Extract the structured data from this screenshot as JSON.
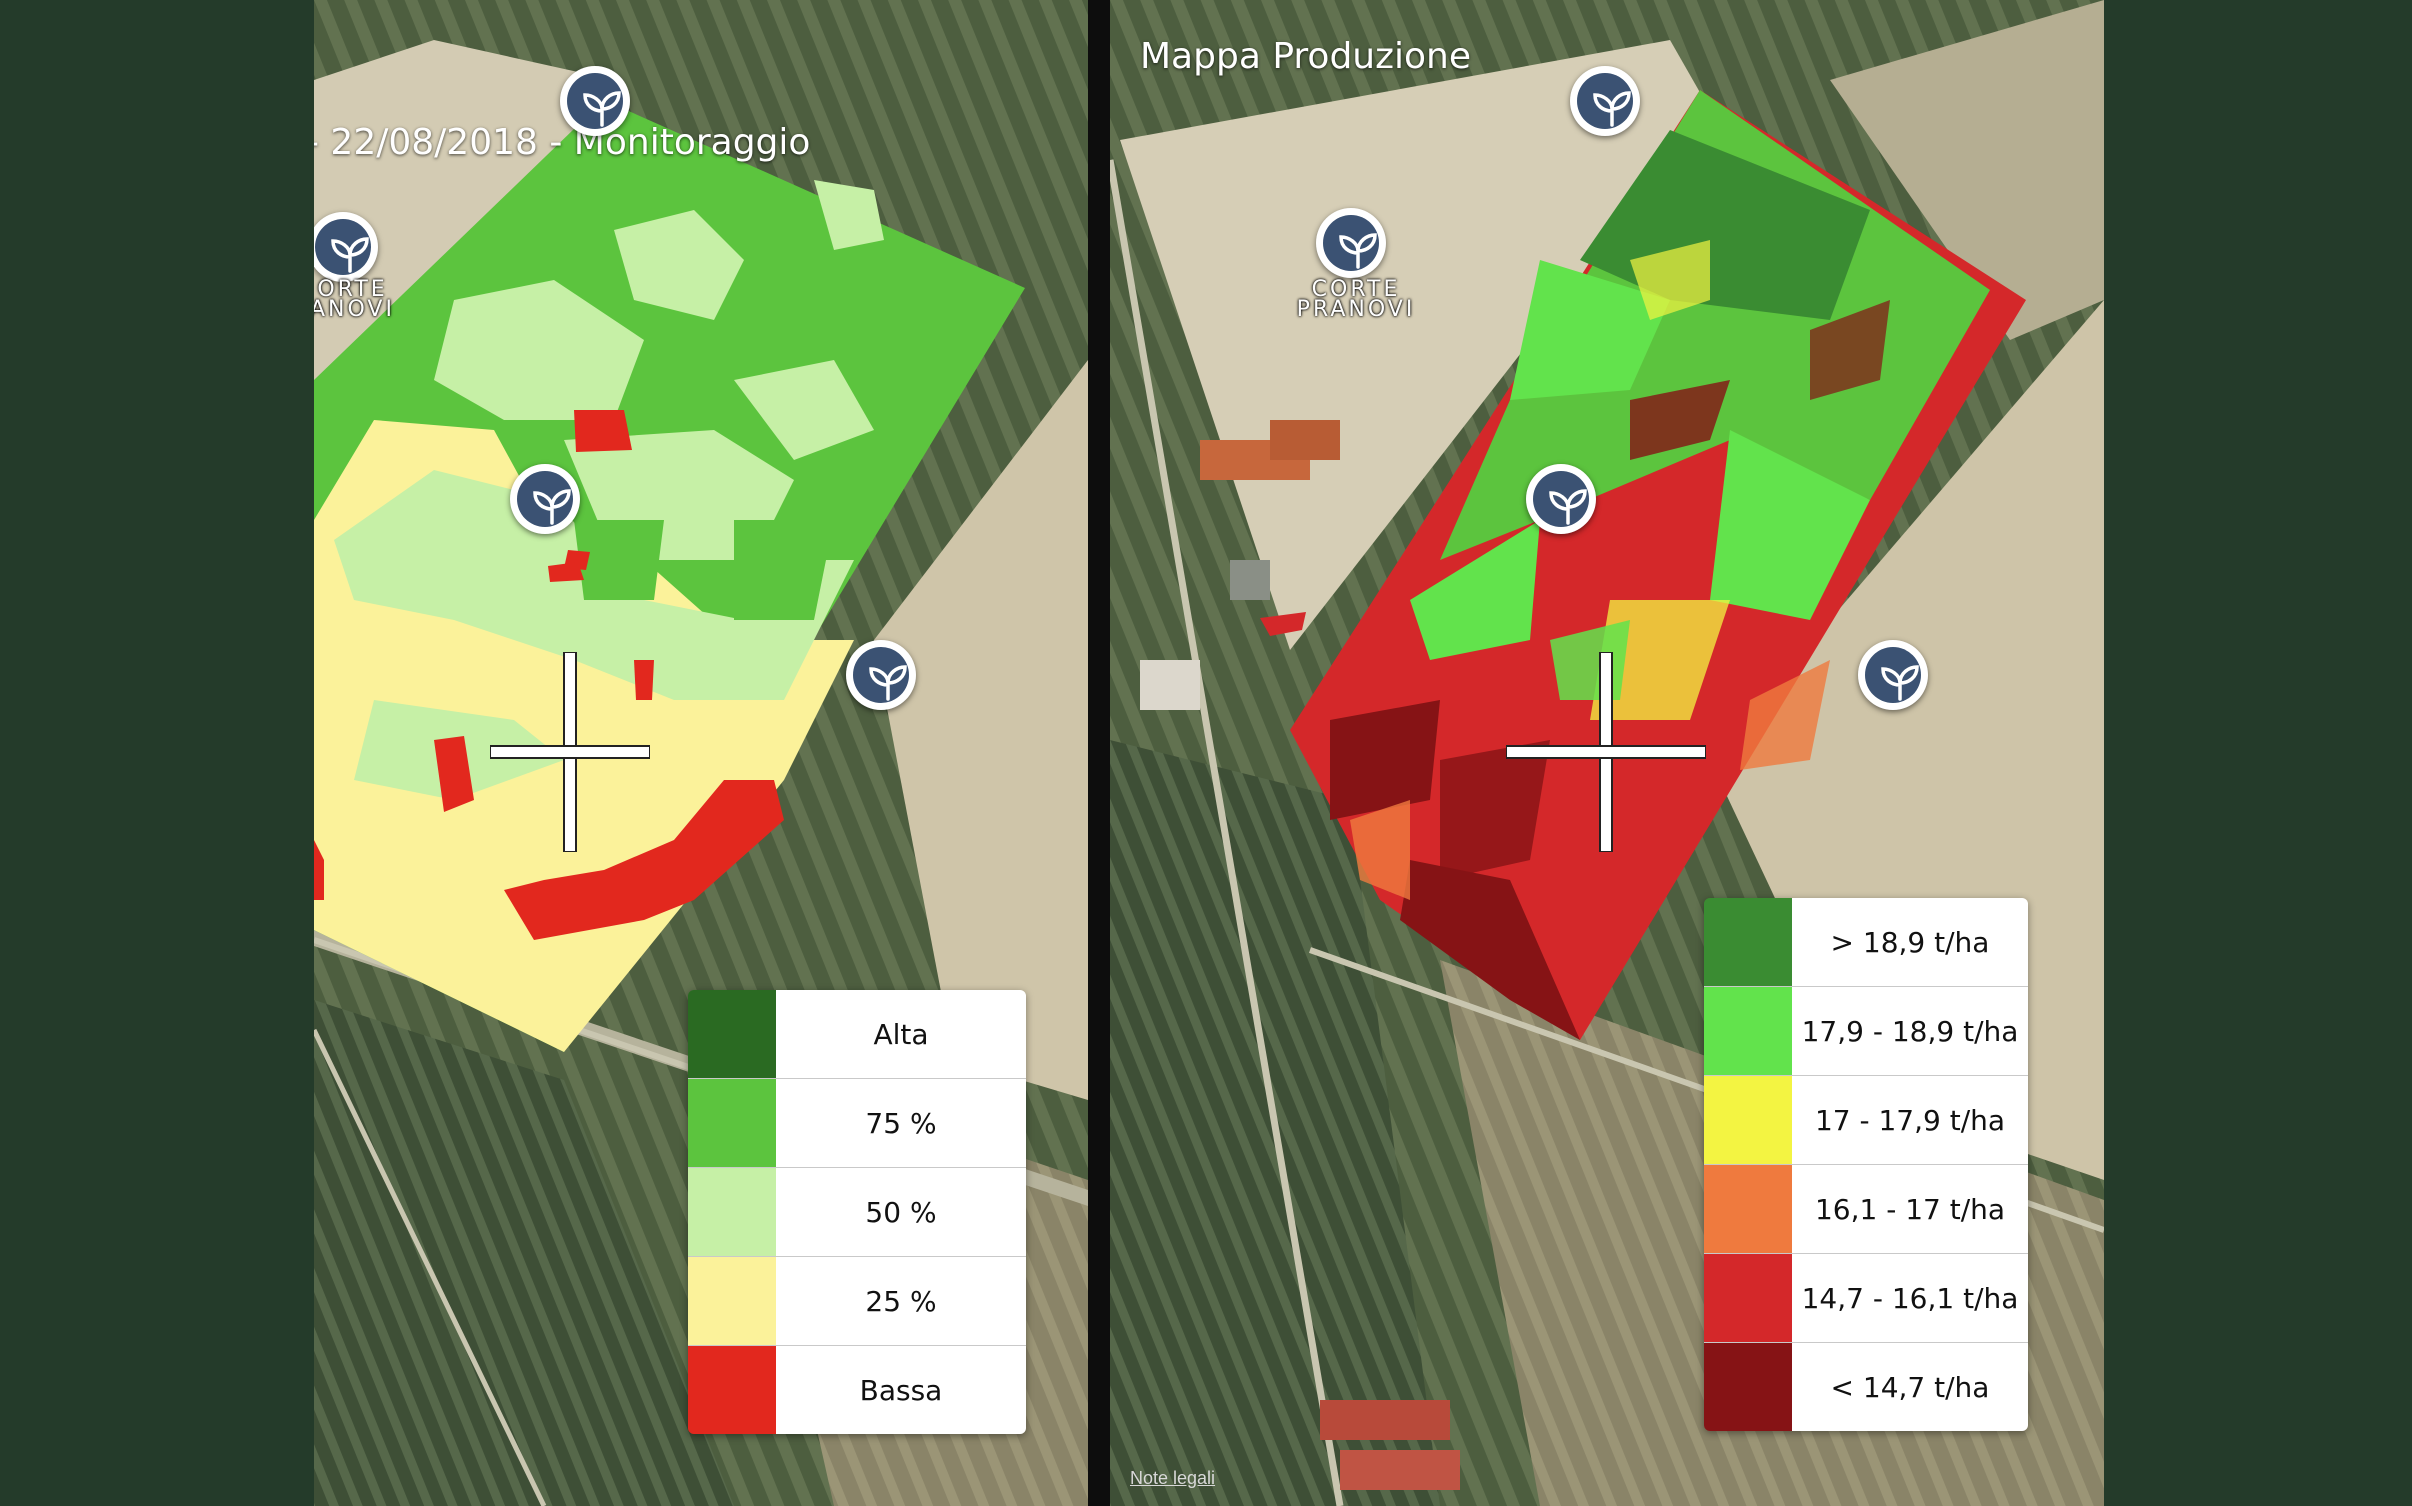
{
  "left_panel": {
    "title": "- 22/08/2018 - Monitoraggio",
    "place_label_lines": [
      "ORTE",
      "ANOVI"
    ],
    "legend": [
      {
        "label": "Alta",
        "color": "#2a6a22"
      },
      {
        "label": "75 %",
        "color": "#5cc43e"
      },
      {
        "label": "50 %",
        "color": "#c6f0a6"
      },
      {
        "label": "25 %",
        "color": "#fbf29a"
      },
      {
        "label": "Bassa",
        "color": "#e2281e"
      }
    ]
  },
  "right_panel": {
    "title": "Mappa Produzione",
    "place_label_lines": [
      "CORTE",
      "PRANOVI"
    ],
    "legend": [
      {
        "label": "> 18,9 t/ha",
        "color": "#3a8c32"
      },
      {
        "label": "17,9 - 18,9 t/ha",
        "color": "#62e34c"
      },
      {
        "label": "17 - 17,9 t/ha",
        "color": "#f3f442"
      },
      {
        "label": "16,1 - 17 t/ha",
        "color": "#ef7a3e"
      },
      {
        "label": "14,7 - 16,1 t/ha",
        "color": "#d4282a"
      },
      {
        "label": "< 14,7 t/ha",
        "color": "#861315"
      }
    ],
    "legal_link": "Note legali"
  },
  "icons": {
    "pin": "seedling-icon",
    "crosshair": "crosshair-icon"
  }
}
